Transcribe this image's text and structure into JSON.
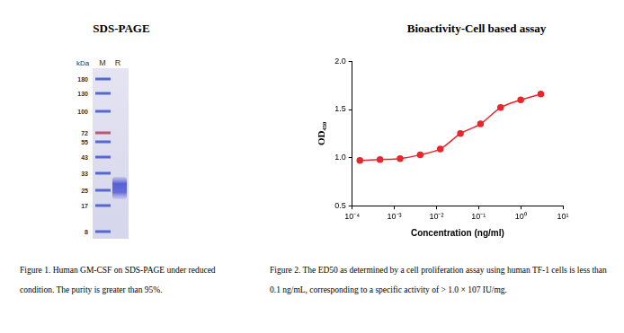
{
  "chart_data": {
    "type": "line",
    "title": "Bioactivity-Cell based assay",
    "x_label": "Concentration (ng/ml)",
    "y_label": "OD₄₅₀",
    "x": [
      0.000152,
      0.000457,
      0.00137,
      0.00412,
      0.0123,
      0.037,
      0.111,
      0.333,
      1,
      3
    ],
    "values": [
      0.97,
      0.98,
      0.99,
      1.03,
      1.09,
      1.25,
      1.35,
      1.52,
      1.6,
      1.66
    ],
    "color": "#e8262c",
    "marker": "circle",
    "line_style": "solid",
    "log": "x",
    "grid": false,
    "xlim": [
      0.0001,
      10
    ],
    "xticks": [
      {
        "value": 0.0001,
        "label": "10⁻⁴"
      },
      {
        "value": 0.001,
        "label": "10⁻³"
      },
      {
        "value": 0.01,
        "label": "10⁻²"
      },
      {
        "value": 0.1,
        "label": "10⁻¹"
      },
      {
        "value": 1,
        "label": "10⁰"
      },
      {
        "value": 10,
        "label": "10¹"
      }
    ],
    "ylim": [
      0.5,
      2
    ],
    "yticks": [
      0.5,
      {
        "value": 1,
        "label": "1.0"
      },
      1.5,
      {
        "value": 2,
        "label": "2.0"
      }
    ]
  },
  "gel": {
    "title": "SDS-PAGE",
    "unit_label": "kDa",
    "lanes": [
      "M",
      "R"
    ],
    "marker_kda": [
      180,
      130,
      100,
      72,
      55,
      43,
      33,
      25,
      17,
      8
    ],
    "sample_band_kda": [
      20,
      31
    ]
  },
  "captions": [
    "Figure 1. Human GM-CSF on SDS-PAGE under reduced condition. The purity is greater than 95%.",
    "Figure 2. The ED50 as determined by a cell proliferation assay using human TF-1 cells is less than 0.1 ng/mL, corresponding to a specific activity of > 1.0 × 107 IU/mg."
  ]
}
